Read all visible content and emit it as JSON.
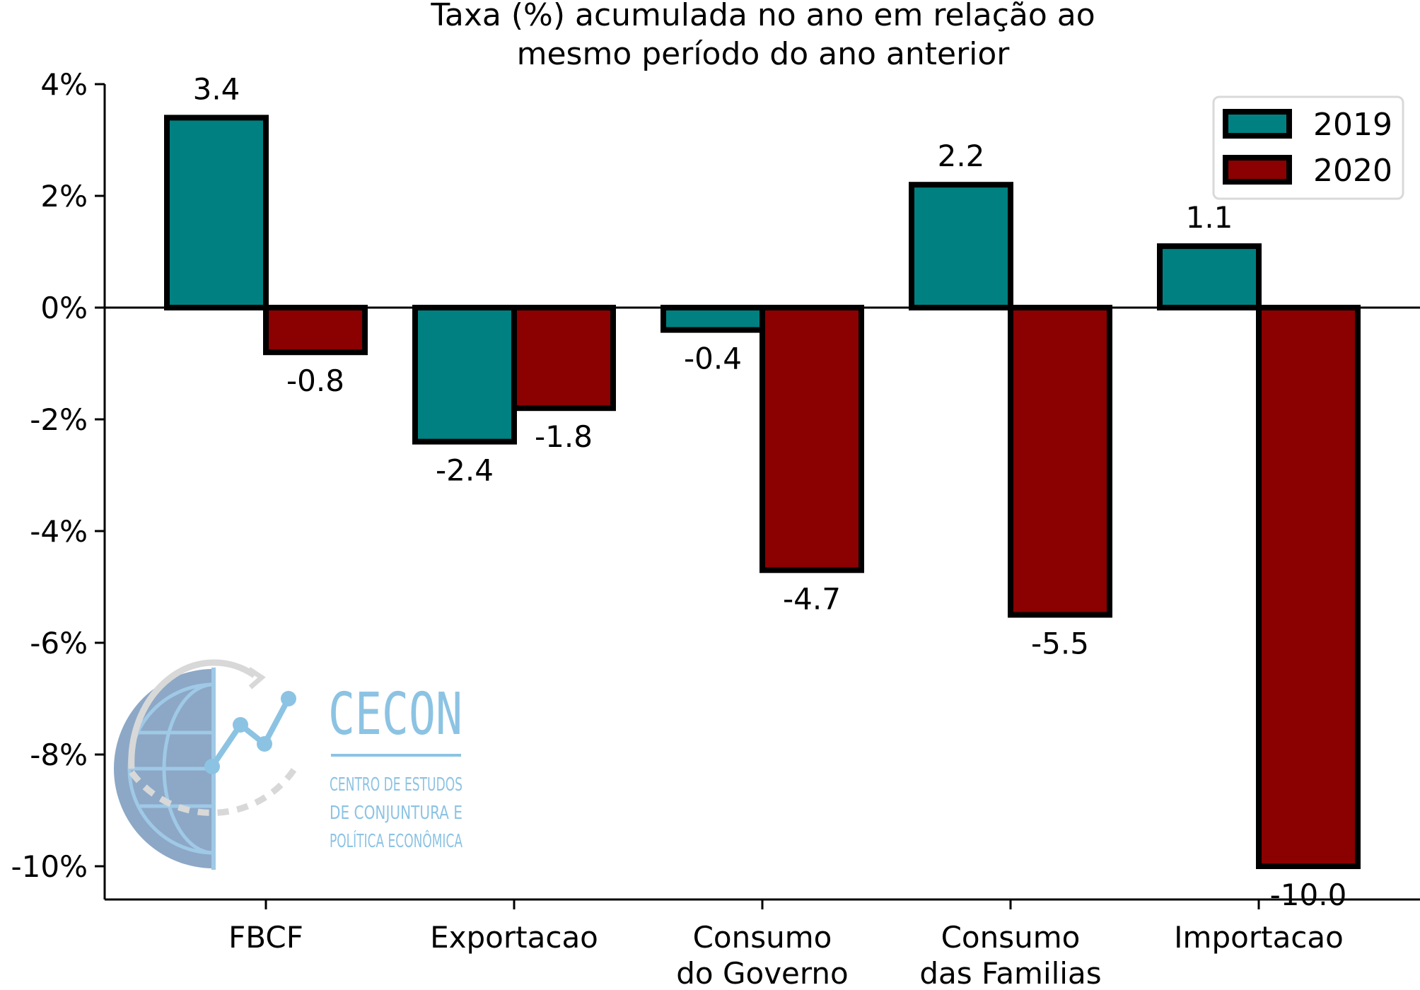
{
  "chart_data": {
    "type": "bar",
    "title_lines": [
      "Taxa (%) acumulada no ano em relação ao",
      "mesmo período do ano anterior"
    ],
    "xlabel": "",
    "ylabel": "",
    "categories": [
      [
        "FBCF"
      ],
      [
        "Exportacao"
      ],
      [
        "Consumo",
        "do Governo"
      ],
      [
        "Consumo",
        "das Familias"
      ],
      [
        "Importacao"
      ]
    ],
    "series": [
      {
        "name": "2019",
        "values": [
          3.4,
          -2.4,
          -0.4,
          2.2,
          1.1
        ],
        "labels": [
          "3.4",
          "-2.4",
          "-0.4",
          "2.2",
          "1.1"
        ],
        "color": "#008080"
      },
      {
        "name": "2020",
        "values": [
          -0.8,
          -1.8,
          -4.7,
          -5.5,
          -10.0
        ],
        "labels": [
          "-0.8",
          "-1.8",
          "-4.7",
          "-5.5",
          "-10.0"
        ],
        "color": "#8b0000"
      }
    ],
    "ylim": [
      -10.6,
      4.0
    ],
    "yticks": [
      4,
      2,
      0,
      -2,
      -4,
      -6,
      -8,
      -10
    ],
    "ytick_labels": [
      "4%",
      "2%",
      "0%",
      "-2%",
      "-4%",
      "-6%",
      "-8%",
      "-10%"
    ],
    "legend_position": "top-right",
    "grid": false,
    "zero_line": true
  },
  "logo": {
    "name": "CECON",
    "lines": [
      "CENTRO DE ESTUDOS",
      "DE CONJUNTURA E",
      "POLÍTICA ECONÔMICA"
    ]
  }
}
